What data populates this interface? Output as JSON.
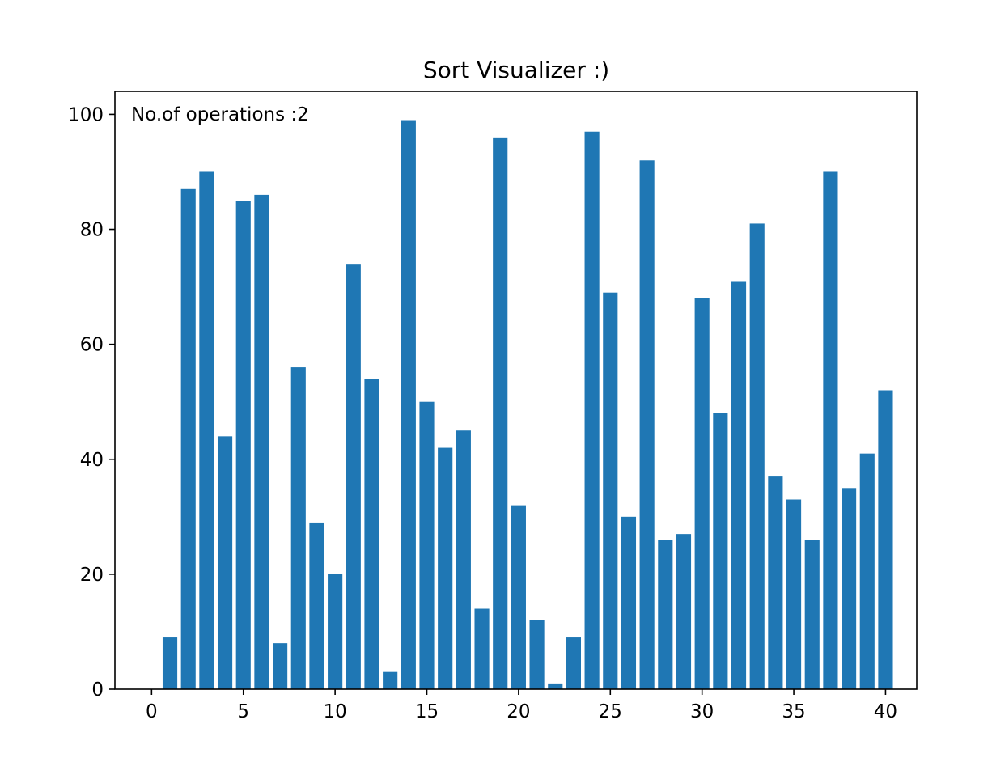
{
  "chart_data": {
    "type": "bar",
    "title": "Sort Visualizer :)",
    "annotation": "No.of operations :2",
    "xlabel": "",
    "ylabel": "",
    "x": [
      1,
      2,
      3,
      4,
      5,
      6,
      7,
      8,
      9,
      10,
      11,
      12,
      13,
      14,
      15,
      16,
      17,
      18,
      19,
      20,
      21,
      22,
      23,
      24,
      25,
      26,
      27,
      28,
      29,
      30,
      31,
      32,
      33,
      34,
      35,
      36,
      37,
      38,
      39,
      40
    ],
    "values": [
      9,
      87,
      90,
      44,
      85,
      86,
      8,
      56,
      29,
      20,
      74,
      54,
      3,
      99,
      50,
      42,
      45,
      14,
      96,
      32,
      12,
      1,
      9,
      97,
      69,
      30,
      92,
      26,
      27,
      68,
      48,
      71,
      81,
      37,
      33,
      26,
      90,
      35,
      41,
      52
    ],
    "xlim": [
      -2.0,
      41.7
    ],
    "ylim": [
      0,
      104
    ],
    "xticks": [
      0,
      5,
      10,
      15,
      20,
      25,
      30,
      35,
      40
    ],
    "yticks": [
      0,
      20,
      40,
      60,
      80,
      100
    ],
    "bar_color": "#1f77b4",
    "grid": false
  }
}
